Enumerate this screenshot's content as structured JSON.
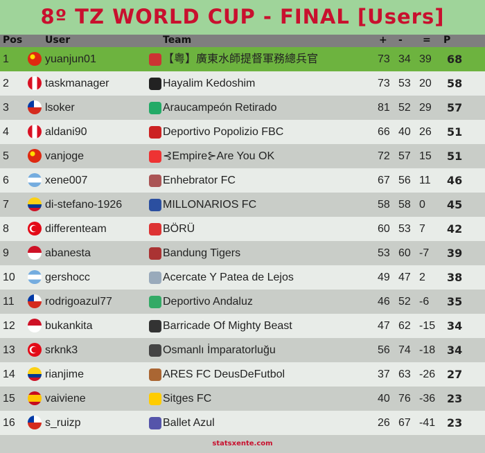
{
  "title": "8º TZ WORLD CUP - FINAL [Users]",
  "headers": {
    "pos": "Pos",
    "user": "User",
    "team": "Team",
    "plus": "+",
    "minus": "-",
    "eq": "=",
    "p": "P"
  },
  "flag_colors": {
    "cn": "#de2910",
    "pe": "#d91023",
    "cl": "#d52b1e",
    "ar": "#74acdf",
    "co": "#fcd116",
    "tr": "#e30a17",
    "id": "#ce1126",
    "es": "#c60b1e"
  },
  "rows": [
    {
      "pos": "1",
      "flag": "cn",
      "user": "yuanjun01",
      "team": "【粤】廣東水師提督軍務總兵官",
      "plus": "73",
      "minus": "34",
      "eq": "39",
      "p": "68"
    },
    {
      "pos": "2",
      "flag": "pe",
      "user": "taskmanager",
      "team": "Hayalim Kedoshim",
      "plus": "73",
      "minus": "53",
      "eq": "20",
      "p": "58"
    },
    {
      "pos": "3",
      "flag": "cl",
      "user": "lsoker",
      "team": "Araucampeón Retirado",
      "plus": "81",
      "minus": "52",
      "eq": "29",
      "p": "57"
    },
    {
      "pos": "4",
      "flag": "pe",
      "user": "aldani90",
      "team": "Deportivo Popolizio FBC",
      "plus": "66",
      "minus": "40",
      "eq": "26",
      "p": "51"
    },
    {
      "pos": "5",
      "flag": "cn",
      "user": "vanjoge",
      "team": "⊰Empire⊱Are You OK",
      "plus": "72",
      "minus": "57",
      "eq": "15",
      "p": "51"
    },
    {
      "pos": "6",
      "flag": "ar",
      "user": "xene007",
      "team": "Enhebrator FC",
      "plus": "67",
      "minus": "56",
      "eq": "11",
      "p": "46"
    },
    {
      "pos": "7",
      "flag": "co",
      "user": "di-stefano-1926",
      "team": "MILLONARIOS FC",
      "plus": "58",
      "minus": "58",
      "eq": "0",
      "p": "45"
    },
    {
      "pos": "8",
      "flag": "tr",
      "user": "differenteam",
      "team": "BÖRÜ",
      "plus": "60",
      "minus": "53",
      "eq": "7",
      "p": "42"
    },
    {
      "pos": "9",
      "flag": "id",
      "user": "abanesta",
      "team": "Bandung Tigers",
      "plus": "53",
      "minus": "60",
      "eq": "-7",
      "p": "39"
    },
    {
      "pos": "10",
      "flag": "ar",
      "user": "gershocc",
      "team": "Acercate Y Patea de Lejos",
      "plus": "49",
      "minus": "47",
      "eq": "2",
      "p": "38"
    },
    {
      "pos": "11",
      "flag": "cl",
      "user": "rodrigoazul77",
      "team": "Deportivo Andaluz",
      "plus": "46",
      "minus": "52",
      "eq": "-6",
      "p": "35"
    },
    {
      "pos": "12",
      "flag": "id",
      "user": "bukankita",
      "team": "Barricade Of Mighty Beast",
      "plus": "47",
      "minus": "62",
      "eq": "-15",
      "p": "34"
    },
    {
      "pos": "13",
      "flag": "tr",
      "user": "srknk3",
      "team": "Osmanlı İmparatorluğu",
      "plus": "56",
      "minus": "74",
      "eq": "-18",
      "p": "34"
    },
    {
      "pos": "14",
      "flag": "co",
      "user": "rianjime",
      "team": "ARES FC DeusDeFutbol",
      "plus": "37",
      "minus": "63",
      "eq": "-26",
      "p": "27"
    },
    {
      "pos": "15",
      "flag": "es",
      "user": "vaiviene",
      "team": "Sitges FC",
      "plus": "40",
      "minus": "76",
      "eq": "-36",
      "p": "23"
    },
    {
      "pos": "16",
      "flag": "cl",
      "user": "s_ruizp",
      "team": "Ballet Azul",
      "plus": "26",
      "minus": "67",
      "eq": "-41",
      "p": "23"
    }
  ],
  "crest_colors": [
    "#c33",
    "#222",
    "#2a6",
    "#c22",
    "#e33",
    "#a55",
    "#2b4fa0",
    "#d33",
    "#a33",
    "#9ab",
    "#3a6",
    "#333",
    "#444",
    "#a63",
    "#fc0",
    "#55a"
  ],
  "footer": "statsxente.com"
}
